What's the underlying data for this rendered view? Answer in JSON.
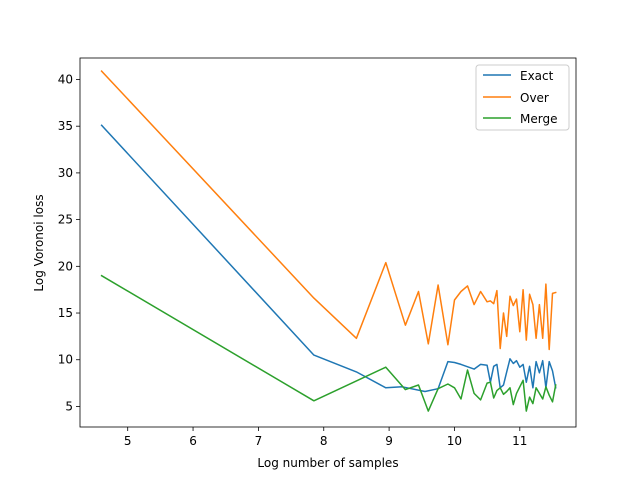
{
  "chart_data": {
    "type": "line",
    "title": "",
    "xlabel": "Log number of samples",
    "ylabel": "Log Voronoi loss",
    "xlim": [
      4.27,
      11.86
    ],
    "ylim": [
      2.8,
      42.3
    ],
    "xticks": [
      5,
      6,
      7,
      8,
      9,
      10,
      11
    ],
    "yticks": [
      5,
      10,
      15,
      20,
      25,
      30,
      35,
      40
    ],
    "grid": false,
    "legend_position": "top-right",
    "series": [
      {
        "name": "Exact",
        "color": "#1f77b4",
        "x": [
          4.6,
          7.85,
          8.5,
          8.95,
          9.2,
          9.55,
          9.75,
          9.9,
          10.0,
          10.1,
          10.3,
          10.4,
          10.5,
          10.55,
          10.6,
          10.65,
          10.7,
          10.75,
          10.8,
          10.85,
          10.9,
          10.95,
          11.0,
          11.05,
          11.1,
          11.15,
          11.2,
          11.25,
          11.3,
          11.35,
          11.4,
          11.45,
          11.5,
          11.55
        ],
        "y": [
          35.1,
          10.5,
          8.7,
          7.0,
          7.1,
          6.6,
          6.9,
          9.8,
          9.7,
          9.5,
          9.0,
          9.5,
          9.4,
          7.6,
          9.3,
          9.5,
          7.0,
          7.3,
          8.7,
          10.1,
          9.6,
          9.9,
          9.2,
          9.5,
          7.6,
          9.3,
          7.0,
          9.8,
          8.6,
          9.9,
          7.0,
          9.8,
          8.8,
          7.0
        ]
      },
      {
        "name": "Over",
        "color": "#ff7f0e",
        "x": [
          4.6,
          7.85,
          8.5,
          8.95,
          9.25,
          9.45,
          9.6,
          9.75,
          9.9,
          10.0,
          10.1,
          10.2,
          10.3,
          10.4,
          10.5,
          10.55,
          10.6,
          10.65,
          10.7,
          10.75,
          10.8,
          10.85,
          10.9,
          10.95,
          11.0,
          11.05,
          11.1,
          11.15,
          11.2,
          11.25,
          11.3,
          11.35,
          11.4,
          11.45,
          11.5,
          11.55
        ],
        "y": [
          40.9,
          16.6,
          12.3,
          20.4,
          13.7,
          17.3,
          11.7,
          18.0,
          11.6,
          16.4,
          17.3,
          17.9,
          15.9,
          17.3,
          16.2,
          16.3,
          16.0,
          17.4,
          11.2,
          15.0,
          12.5,
          16.8,
          15.8,
          16.5,
          13.0,
          17.5,
          12.1,
          17.0,
          15.9,
          12.3,
          15.9,
          12.3,
          18.1,
          11.1,
          17.1,
          17.2
        ]
      },
      {
        "name": "Merge",
        "color": "#2ca02c",
        "x": [
          4.6,
          7.85,
          8.95,
          9.25,
          9.45,
          9.6,
          9.75,
          9.9,
          10.0,
          10.1,
          10.2,
          10.3,
          10.4,
          10.5,
          10.55,
          10.6,
          10.65,
          10.7,
          10.75,
          10.8,
          10.85,
          10.9,
          10.95,
          11.0,
          11.05,
          11.1,
          11.15,
          11.2,
          11.25,
          11.3,
          11.35,
          11.4,
          11.45,
          11.5,
          11.55
        ],
        "y": [
          19.0,
          5.6,
          9.2,
          6.8,
          7.3,
          4.5,
          6.9,
          7.4,
          7.0,
          5.8,
          8.9,
          6.4,
          5.7,
          7.5,
          7.6,
          5.9,
          6.7,
          7.0,
          6.3,
          6.6,
          7.0,
          5.2,
          6.4,
          7.1,
          7.8,
          4.5,
          6.0,
          5.3,
          7.0,
          6.4,
          5.8,
          7.1,
          6.2,
          5.5,
          7.3
        ]
      }
    ]
  }
}
